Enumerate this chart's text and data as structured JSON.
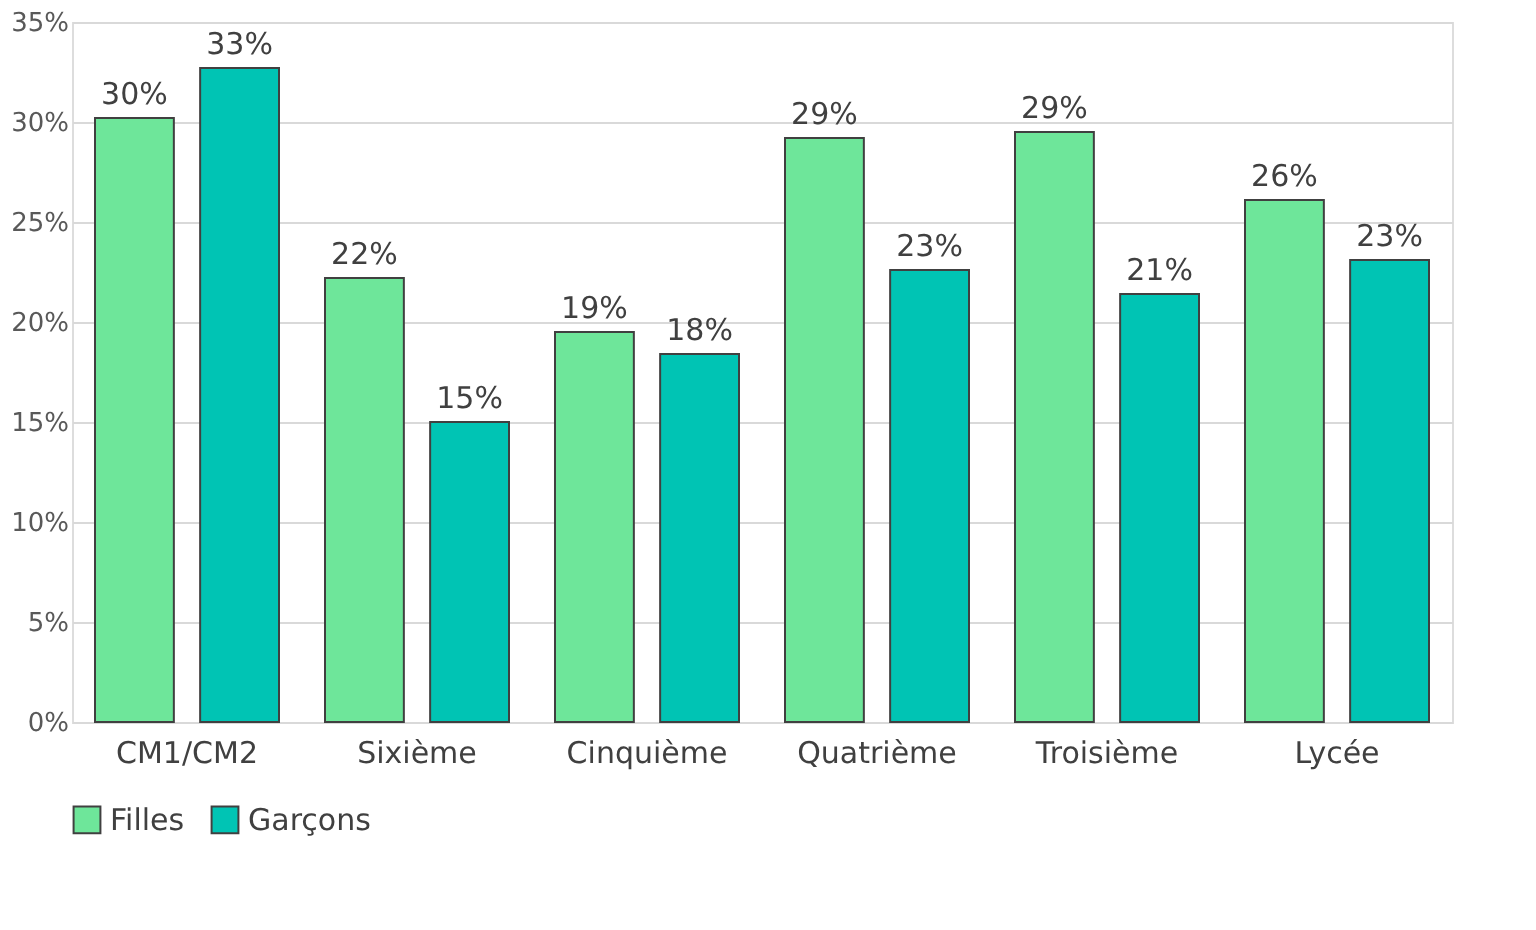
{
  "chart_data": {
    "type": "bar",
    "categories": [
      "CM1/CM2",
      "Sixième",
      "Cinquième",
      "Quatrième",
      "Troisième",
      "Lycée"
    ],
    "series": [
      {
        "name": "Filles",
        "color": "#6ee69a",
        "values": [
          30.2,
          22.2,
          19.5,
          29.2,
          29.5,
          26.1
        ],
        "value_labels": [
          "30%",
          "22%",
          "19%",
          "29%",
          "29%",
          "26%"
        ]
      },
      {
        "name": "Garçons",
        "color": "#00c4b4",
        "values": [
          32.7,
          15.0,
          18.4,
          22.6,
          21.4,
          23.1
        ],
        "value_labels": [
          "33%",
          "15%",
          "18%",
          "23%",
          "21%",
          "23%"
        ]
      }
    ],
    "ylim": [
      0,
      35
    ],
    "yticks": [
      {
        "value": 0,
        "label": "0%"
      },
      {
        "value": 5,
        "label": "5%"
      },
      {
        "value": 10,
        "label": "10%"
      },
      {
        "value": 15,
        "label": "15%"
      },
      {
        "value": 20,
        "label": "20%"
      },
      {
        "value": 25,
        "label": "25%"
      },
      {
        "value": 30,
        "label": "30%"
      },
      {
        "value": 35,
        "label": "35%"
      }
    ],
    "grid": "y",
    "legend": "bottom"
  }
}
